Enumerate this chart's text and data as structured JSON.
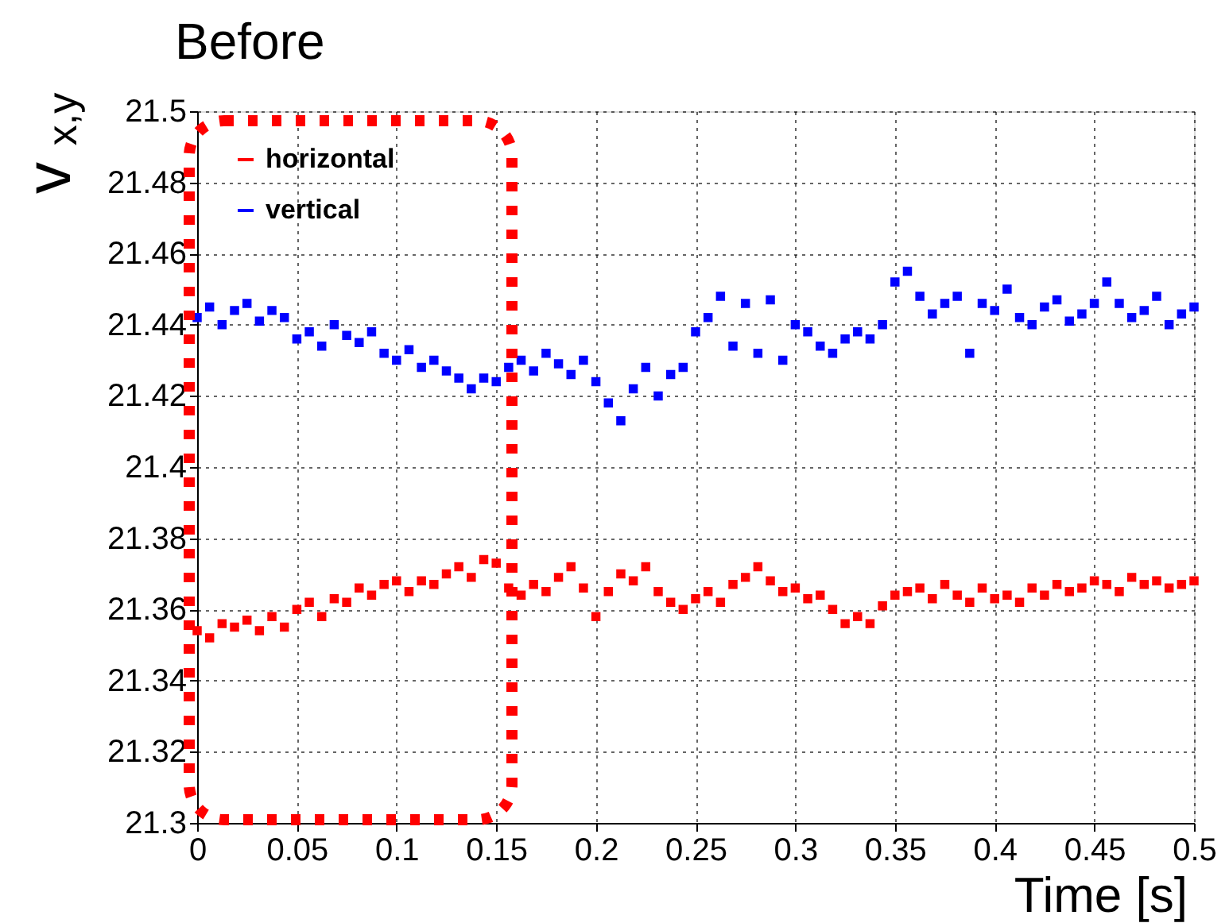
{
  "chart_data": {
    "type": "scatter",
    "title": "Before",
    "xlabel": "Time [s]",
    "ylabel": "v$_{x,y}$",
    "x": [
      0,
      0.00625,
      0.0125,
      0.01875,
      0.025,
      0.03125,
      0.0375,
      0.04375,
      0.05,
      0.05625,
      0.0625,
      0.06875,
      0.075,
      0.08125,
      0.0875,
      0.09375,
      0.1,
      0.10625,
      0.1125,
      0.11875,
      0.125,
      0.13125,
      0.1375,
      0.14375,
      0.15,
      0.15625,
      0.1625,
      0.16875,
      0.175,
      0.18125,
      0.1875,
      0.19375,
      0.2,
      0.20625,
      0.2125,
      0.21875,
      0.225,
      0.23125,
      0.2375,
      0.24375,
      0.25,
      0.25625,
      0.2625,
      0.26875,
      0.275,
      0.28125,
      0.2875,
      0.29375,
      0.3,
      0.30625,
      0.3125,
      0.31875,
      0.325,
      0.33125,
      0.3375,
      0.34375,
      0.35,
      0.35625,
      0.3625,
      0.36875,
      0.375,
      0.38125,
      0.3875,
      0.39375,
      0.4,
      0.40625,
      0.4125,
      0.41875,
      0.425,
      0.43125,
      0.4375,
      0.44375,
      0.45,
      0.45625,
      0.4625,
      0.46875,
      0.475,
      0.48125,
      0.4875,
      0.49375,
      0.5
    ],
    "series": [
      {
        "name": "horizontal",
        "color": "#ff0000",
        "values": [
          21.354,
          21.352,
          21.356,
          21.355,
          21.357,
          21.354,
          21.358,
          21.355,
          21.36,
          21.362,
          21.358,
          21.363,
          21.362,
          21.366,
          21.364,
          21.367,
          21.368,
          21.365,
          21.368,
          21.367,
          21.37,
          21.372,
          21.369,
          21.374,
          21.373,
          21.366,
          21.364,
          21.367,
          21.365,
          21.369,
          21.372,
          21.366,
          21.358,
          21.365,
          21.37,
          21.368,
          21.372,
          21.365,
          21.362,
          21.36,
          21.363,
          21.365,
          21.362,
          21.367,
          21.369,
          21.372,
          21.368,
          21.365,
          21.366,
          21.363,
          21.364,
          21.36,
          21.356,
          21.358,
          21.356,
          21.361,
          21.364,
          21.365,
          21.366,
          21.363,
          21.367,
          21.364,
          21.362,
          21.366,
          21.363,
          21.364,
          21.362,
          21.366,
          21.364,
          21.367,
          21.365,
          21.366,
          21.368,
          21.367,
          21.365,
          21.369,
          21.367,
          21.368,
          21.366,
          21.367,
          21.368
        ]
      },
      {
        "name": "vertical",
        "color": "#0000ff",
        "values": [
          21.442,
          21.445,
          21.44,
          21.444,
          21.446,
          21.441,
          21.444,
          21.442,
          21.436,
          21.438,
          21.434,
          21.44,
          21.437,
          21.435,
          21.438,
          21.432,
          21.43,
          21.433,
          21.428,
          21.43,
          21.427,
          21.425,
          21.422,
          21.425,
          21.424,
          21.428,
          21.43,
          21.427,
          21.432,
          21.429,
          21.426,
          21.43,
          21.424,
          21.418,
          21.413,
          21.422,
          21.428,
          21.42,
          21.426,
          21.428,
          21.438,
          21.442,
          21.448,
          21.434,
          21.446,
          21.432,
          21.447,
          21.43,
          21.44,
          21.438,
          21.434,
          21.432,
          21.436,
          21.438,
          21.436,
          21.44,
          21.452,
          21.455,
          21.448,
          21.443,
          21.446,
          21.448,
          21.432,
          21.446,
          21.444,
          21.45,
          21.442,
          21.44,
          21.445,
          21.447,
          21.441,
          21.443,
          21.446,
          21.452,
          21.446,
          21.442,
          21.444,
          21.448,
          21.44,
          21.443,
          21.445
        ]
      }
    ],
    "xlim": [
      0,
      0.5
    ],
    "xticks": [
      0,
      0.05,
      0.1,
      0.15,
      0.2,
      0.25,
      0.3,
      0.35,
      0.4,
      0.45,
      0.5
    ],
    "ylim": [
      21.3,
      21.5
    ],
    "yticks": [
      21.3,
      21.32,
      21.34,
      21.36,
      21.38,
      21.4,
      21.42,
      21.44,
      21.46,
      21.48,
      21.5
    ],
    "grid": true,
    "legend": "top left",
    "marker": "square"
  }
}
